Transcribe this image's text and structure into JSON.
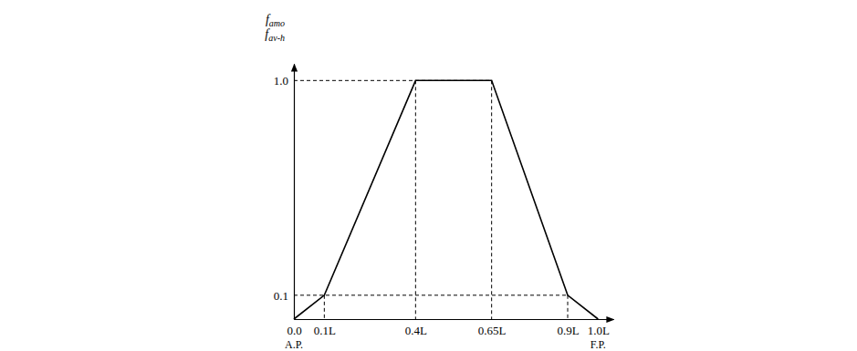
{
  "chart_data": {
    "type": "line",
    "color": "#000000",
    "ylabel": [
      {
        "base": "f",
        "sub": "amo"
      },
      {
        "base": "f",
        "sub": "av-h"
      }
    ],
    "x": [
      0,
      0.1,
      0.4,
      0.65,
      0.9,
      1.0
    ],
    "values": [
      0,
      0.1,
      1.0,
      1.0,
      0.1,
      0
    ],
    "xlim": [
      0,
      1.05
    ],
    "ylim": [
      0,
      1.07
    ],
    "xticks": [
      {
        "value": 0,
        "label": "0.0"
      },
      {
        "value": 0.1,
        "label": "0.1L"
      },
      {
        "value": 0.4,
        "label": "0.4L"
      },
      {
        "value": 0.65,
        "label": "0.65L"
      },
      {
        "value": 0.9,
        "label": "0.9L"
      },
      {
        "value": 1.0,
        "label": "1.0L"
      }
    ],
    "yticks": [
      0.1,
      {
        "value": 1.0,
        "label": "1.0"
      }
    ],
    "annotations": [
      {
        "text": "A.P.",
        "x": 0
      },
      {
        "text": "F.P.",
        "x": 1.0
      }
    ],
    "grid": false
  }
}
